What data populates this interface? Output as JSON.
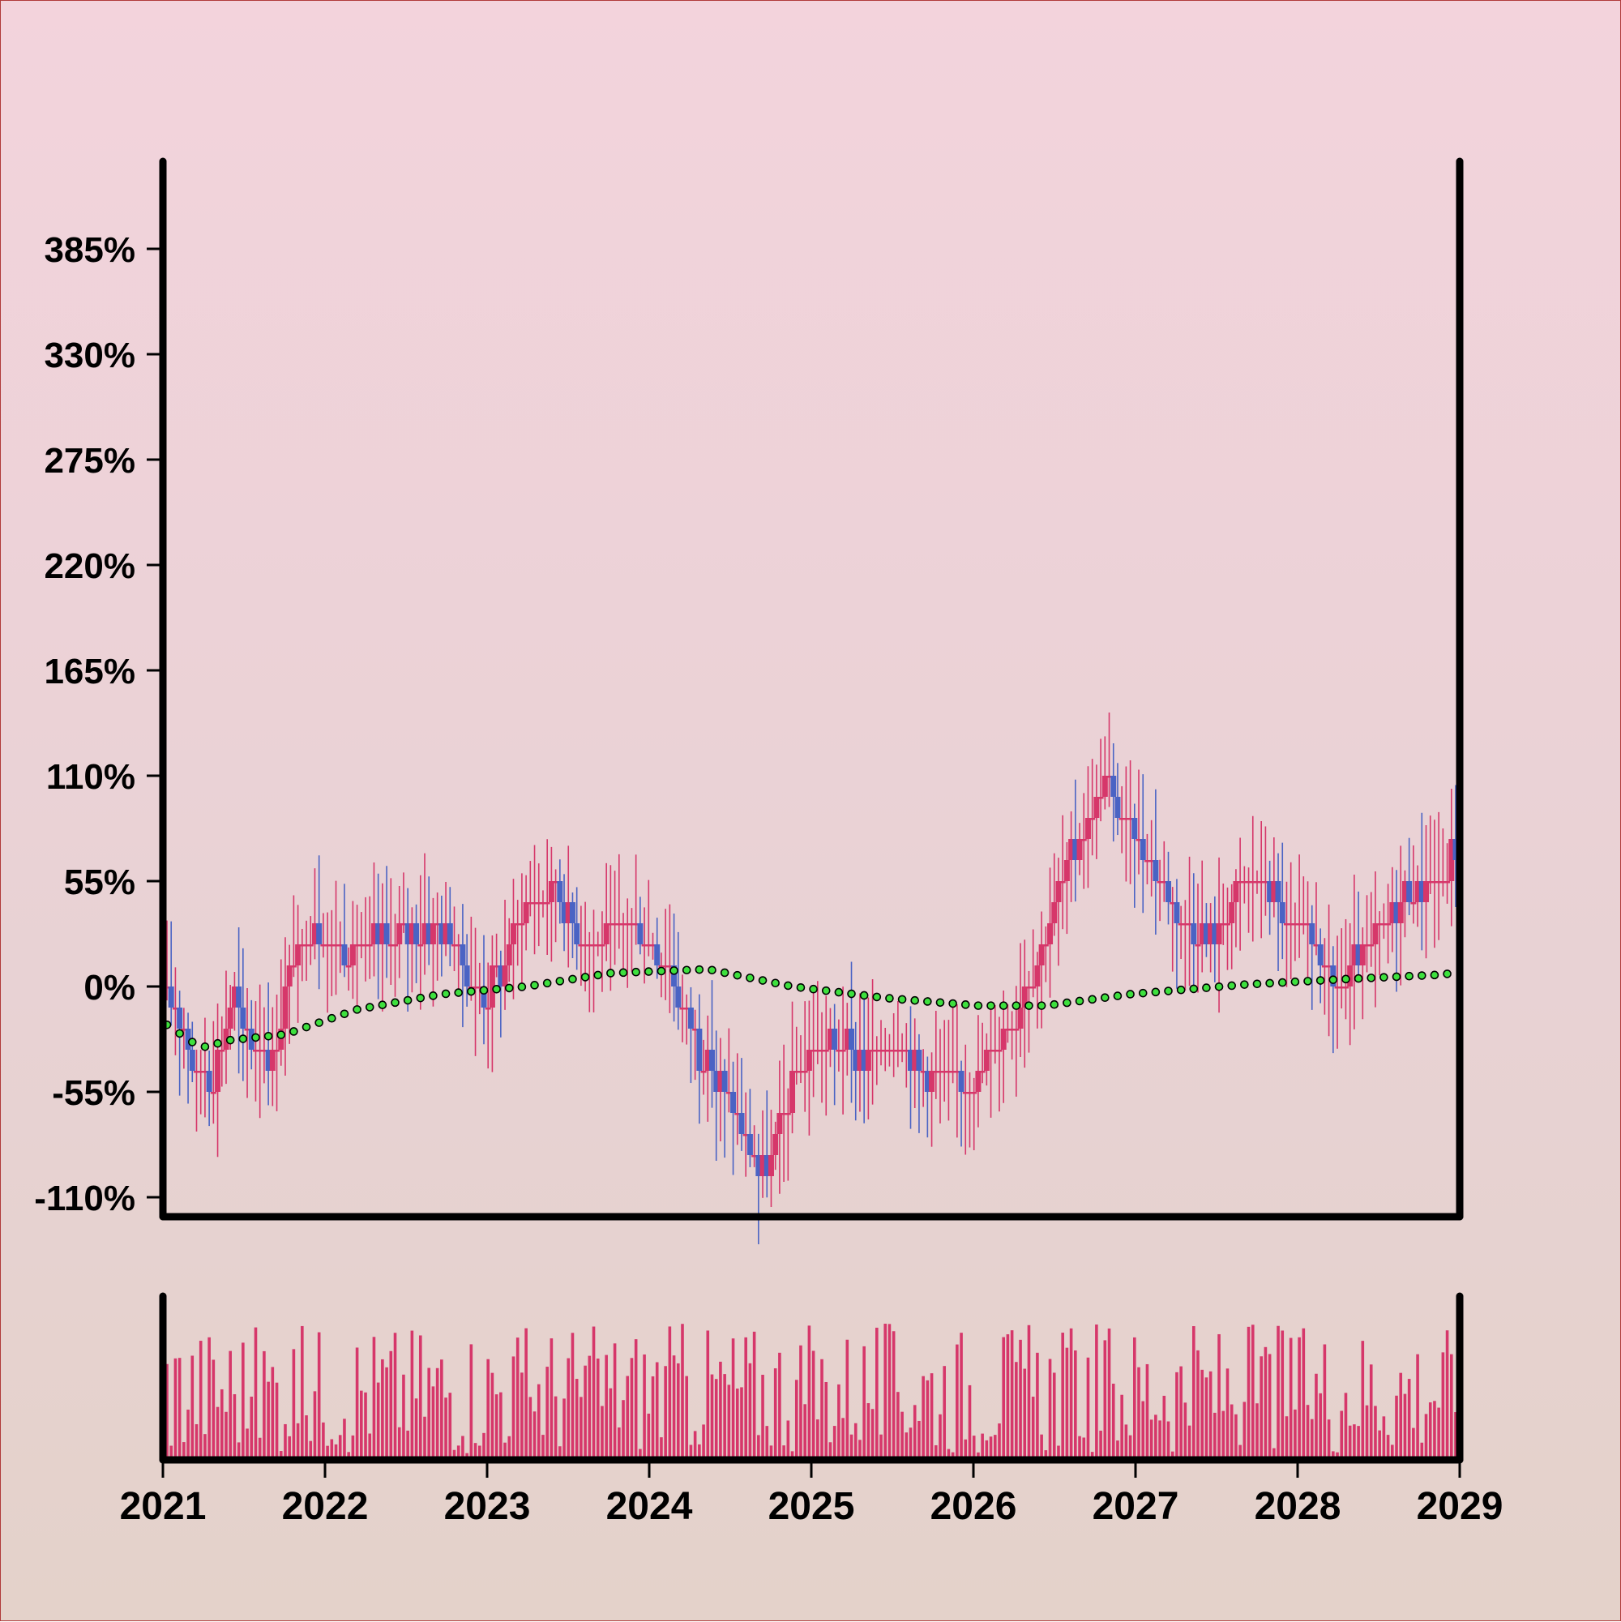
{
  "chart_data": [
    {
      "type": "candlestick",
      "title": "",
      "xlabel": "",
      "ylabel": "",
      "x_ticks": [
        "2021",
        "2022",
        "2023",
        "2024",
        "2025",
        "2026",
        "2027",
        "2028",
        "2029"
      ],
      "x_range": [
        "2021",
        "2029"
      ],
      "y_ticks": [
        "-110%",
        "-55%",
        "0%",
        "55%",
        "110%",
        "165%",
        "220%",
        "275%",
        "330%",
        "385%"
      ],
      "y_tick_values": [
        -110,
        -55,
        0,
        55,
        110,
        165,
        220,
        275,
        330,
        385
      ],
      "ylim": [
        -120,
        430
      ],
      "grid": false,
      "colors": {
        "up": "#d6376a",
        "down": "#4a63c4",
        "trend": "#3ee03e"
      },
      "close_path_weekly_keypoints": [
        [
          0,
          0
        ],
        [
          7,
          -44
        ],
        [
          11,
          -44
        ],
        [
          16,
          0
        ],
        [
          18,
          -22
        ],
        [
          20,
          -33
        ],
        [
          25,
          -33
        ],
        [
          30,
          11
        ],
        [
          35,
          33
        ],
        [
          40,
          20
        ],
        [
          45,
          20
        ],
        [
          52,
          25
        ],
        [
          60,
          27
        ],
        [
          66,
          33
        ],
        [
          72,
          2
        ],
        [
          76,
          -5
        ],
        [
          80,
          15
        ],
        [
          86,
          45
        ],
        [
          92,
          55
        ],
        [
          96,
          33
        ],
        [
          100,
          20
        ],
        [
          104,
          22
        ],
        [
          108,
          33
        ],
        [
          112,
          28
        ],
        [
          118,
          15
        ],
        [
          126,
          -35
        ],
        [
          132,
          -55
        ],
        [
          138,
          -90
        ],
        [
          142,
          -98
        ],
        [
          146,
          -65
        ],
        [
          152,
          -33
        ],
        [
          160,
          -30
        ],
        [
          166,
          -40
        ],
        [
          170,
          -28
        ],
        [
          174,
          -30
        ],
        [
          180,
          -50
        ],
        [
          184,
          -45
        ],
        [
          190,
          -50
        ],
        [
          194,
          -35
        ],
        [
          200,
          -20
        ],
        [
          204,
          5
        ],
        [
          212,
          55
        ],
        [
          222,
          110
        ],
        [
          228,
          80
        ],
        [
          232,
          70
        ],
        [
          236,
          55
        ],
        [
          240,
          30
        ],
        [
          248,
          25
        ],
        [
          254,
          52
        ],
        [
          260,
          55
        ],
        [
          266,
          30
        ],
        [
          272,
          25
        ],
        [
          276,
          -5
        ],
        [
          280,
          8
        ],
        [
          286,
          25
        ],
        [
          292,
          45
        ],
        [
          298,
          55
        ],
        [
          302,
          55
        ],
        [
          305,
          75
        ]
      ],
      "trend_line": {
        "points_weekly": [
          [
            0,
            -20
          ],
          [
            8,
            -32
          ],
          [
            15,
            -28
          ],
          [
            28,
            -25
          ],
          [
            45,
            -12
          ],
          [
            65,
            -4
          ],
          [
            85,
            0
          ],
          [
            105,
            7
          ],
          [
            128,
            9
          ],
          [
            148,
            0
          ],
          [
            170,
            -6
          ],
          [
            192,
            -10
          ],
          [
            208,
            -10
          ],
          [
            228,
            -4
          ],
          [
            255,
            1
          ],
          [
            280,
            4
          ],
          [
            300,
            6
          ],
          [
            305,
            7
          ]
        ]
      },
      "volume_panel": {
        "bar_color": "#d6376a",
        "note": "unlabeled volume histogram, one bar per week"
      }
    }
  ]
}
